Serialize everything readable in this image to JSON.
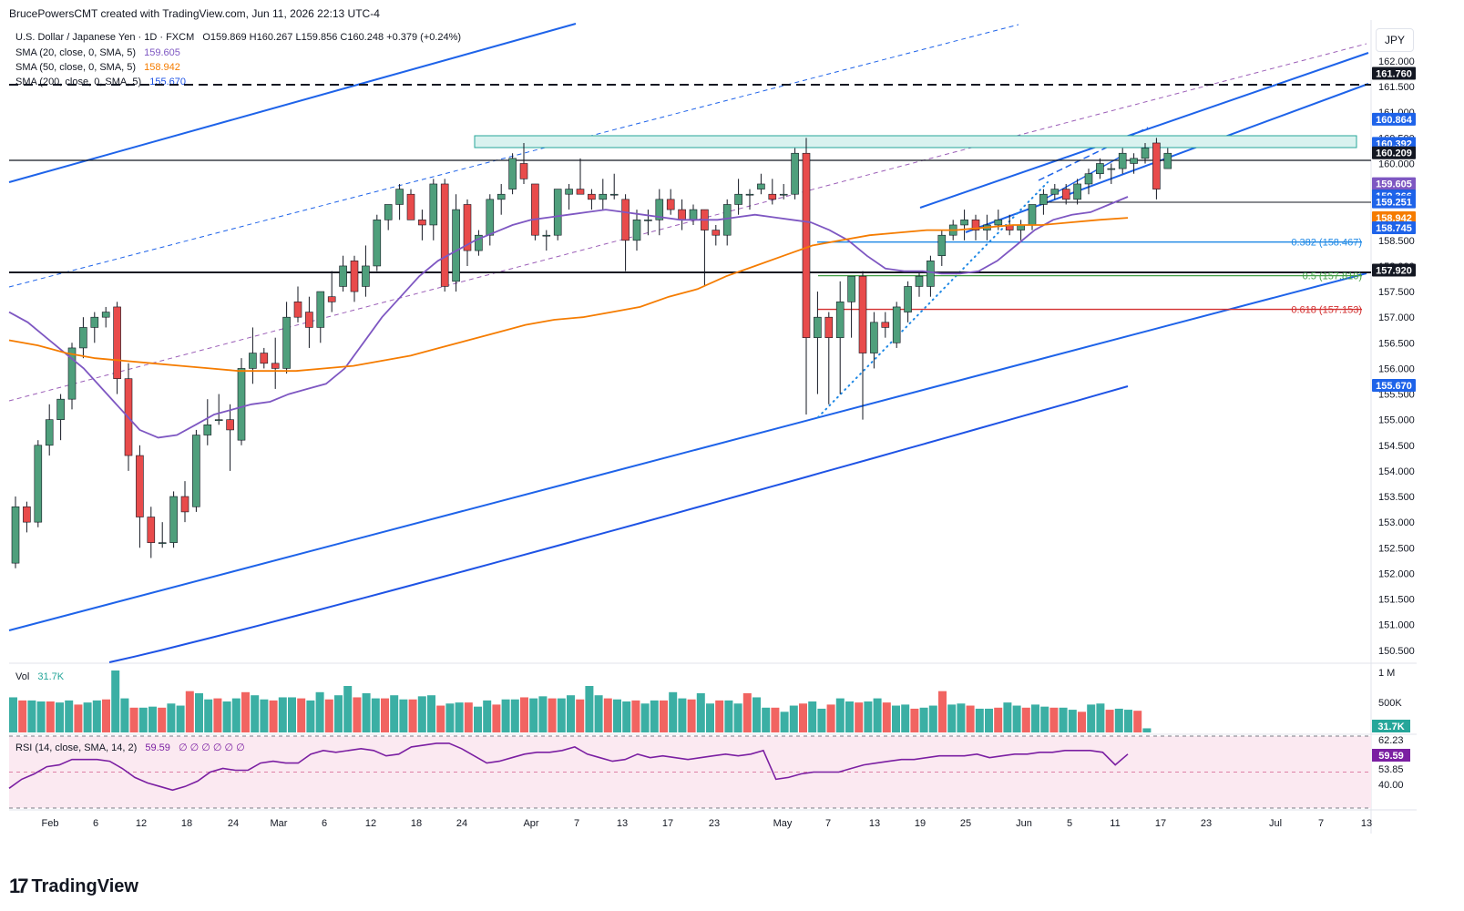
{
  "header": {
    "text": "BrucePowersCMT created with TradingView.com, Jun 11, 2026 22:13 UTC-4"
  },
  "symbol": {
    "title": "U.S. Dollar / Japanese Yen · 1D · FXCM",
    "ohlc": "O159.869 H160.267 L159.856 C160.248 +0.379 (+0.24%)",
    "currency": "JPY"
  },
  "indicators": [
    {
      "label": "SMA (20, close, 0, SMA, 5)",
      "value": "159.605",
      "color": "#7e57c2"
    },
    {
      "label": "SMA (50, close, 0, SMA, 5)",
      "value": "158.942",
      "color": "#f57c00"
    },
    {
      "label": "SMA (200, close, 0, SMA, 5)",
      "value": "155.670",
      "color": "#1e53e5"
    }
  ],
  "colors": {
    "up": "#4f9f7c",
    "down": "#e84b4b",
    "sma20": "#7e57c2",
    "sma50": "#f57c00",
    "sma200": "#1e53e5",
    "channel": "#1e63e9"
  },
  "chart_data": {
    "type": "candlestick",
    "ylim": [
      150.3,
      162.8
    ],
    "y_ticks": [
      "162.000",
      "161.500",
      "161.000",
      "160.500",
      "160.000",
      "159.500",
      "159.000",
      "158.500",
      "158.000",
      "157.500",
      "157.000",
      "156.500",
      "156.000",
      "155.500",
      "155.000",
      "154.500",
      "154.000",
      "153.500",
      "153.000",
      "152.500",
      "152.000",
      "151.500",
      "151.000",
      "150.500"
    ],
    "x_ticks": [
      "Feb",
      "6",
      "12",
      "18",
      "24",
      "Mar",
      "6",
      "12",
      "18",
      "24",
      "Apr",
      "7",
      "13",
      "17",
      "23",
      "May",
      "7",
      "13",
      "19",
      "25",
      "Jun",
      "5",
      "11",
      "17",
      "23",
      "Jul",
      "7",
      "13"
    ],
    "price_labels": [
      {
        "value": "161.760",
        "bg": "#131722"
      },
      {
        "value": "160.864",
        "bg": "#1e63e9"
      },
      {
        "value": "160.392",
        "bg": "#1e63e9"
      },
      {
        "value": "160.217",
        "bg": "#1e63e9"
      },
      {
        "value": "160.209",
        "bg": "#131722"
      },
      {
        "value": "159.605",
        "bg": "#7e57c2"
      },
      {
        "value": "159.366",
        "bg": "#131722"
      },
      {
        "value": "159.366",
        "bg": "#1e63e9"
      },
      {
        "value": "159.251",
        "bg": "#1e63e9"
      },
      {
        "value": "158.942",
        "bg": "#f57c00"
      },
      {
        "value": "158.745",
        "bg": "#1e63e9"
      },
      {
        "value": "157.920",
        "bg": "#131722"
      },
      {
        "value": "155.670",
        "bg": "#1e63e9"
      }
    ],
    "fib_levels": [
      {
        "ratio": "0.382",
        "price": "158.467",
        "label": "0.382 (158.467)",
        "color": "#1e88e5"
      },
      {
        "ratio": "0.5",
        "price": "157.810",
        "label": "0.5 (157.810)",
        "color": "#43a047"
      },
      {
        "ratio": "0.618",
        "price": "157.153",
        "label": "0.618 (157.153)",
        "color": "#d32f2f"
      }
    ],
    "candles": [
      [
        152.2,
        153.5,
        152.1,
        153.3
      ],
      [
        153.3,
        153.4,
        152.8,
        153.0
      ],
      [
        153.0,
        154.6,
        152.9,
        154.5
      ],
      [
        154.5,
        155.3,
        154.3,
        155.0
      ],
      [
        155.0,
        155.5,
        154.6,
        155.4
      ],
      [
        155.4,
        156.5,
        155.2,
        156.4
      ],
      [
        156.4,
        157.0,
        156.2,
        156.8
      ],
      [
        156.8,
        157.1,
        156.5,
        157.0
      ],
      [
        157.0,
        157.2,
        156.8,
        157.1
      ],
      [
        157.2,
        157.3,
        155.5,
        155.8
      ],
      [
        155.8,
        156.1,
        154.0,
        154.3
      ],
      [
        154.3,
        154.5,
        152.5,
        153.1
      ],
      [
        153.1,
        153.3,
        152.3,
        152.6
      ],
      [
        152.6,
        153.0,
        152.5,
        152.6
      ],
      [
        152.6,
        153.6,
        152.5,
        153.5
      ],
      [
        153.5,
        153.8,
        153.0,
        153.2
      ],
      [
        153.3,
        154.8,
        153.2,
        154.7
      ],
      [
        154.7,
        155.4,
        154.5,
        154.9
      ],
      [
        155.0,
        155.5,
        154.9,
        155.0
      ],
      [
        155.0,
        155.3,
        154.0,
        154.8
      ],
      [
        154.6,
        156.2,
        154.5,
        156.0
      ],
      [
        156.0,
        156.8,
        155.7,
        156.3
      ],
      [
        156.3,
        156.4,
        156.0,
        156.1
      ],
      [
        156.1,
        156.6,
        155.6,
        156.0
      ],
      [
        156.0,
        157.3,
        155.9,
        157.0
      ],
      [
        157.3,
        157.6,
        156.9,
        157.0
      ],
      [
        157.1,
        157.4,
        156.4,
        156.8
      ],
      [
        156.8,
        157.5,
        156.5,
        157.5
      ],
      [
        157.4,
        157.9,
        157.1,
        157.3
      ],
      [
        157.6,
        158.2,
        157.5,
        158.0
      ],
      [
        158.1,
        158.2,
        157.3,
        157.5
      ],
      [
        157.6,
        158.4,
        157.4,
        158.0
      ],
      [
        158.0,
        159.0,
        157.9,
        158.9
      ],
      [
        158.9,
        159.2,
        158.7,
        159.2
      ],
      [
        159.2,
        159.6,
        158.9,
        159.5
      ],
      [
        159.4,
        159.5,
        158.9,
        158.9
      ],
      [
        158.9,
        159.1,
        158.5,
        158.8
      ],
      [
        158.8,
        159.7,
        158.5,
        159.6
      ],
      [
        159.6,
        159.7,
        157.5,
        157.6
      ],
      [
        157.7,
        159.4,
        157.5,
        159.1
      ],
      [
        159.2,
        159.3,
        158.0,
        158.3
      ],
      [
        158.3,
        158.7,
        158.2,
        158.6
      ],
      [
        158.6,
        159.4,
        158.4,
        159.3
      ],
      [
        159.3,
        159.6,
        159.0,
        159.4
      ],
      [
        159.5,
        160.2,
        159.4,
        160.1
      ],
      [
        160.0,
        160.4,
        159.6,
        159.7
      ],
      [
        159.6,
        159.6,
        158.5,
        158.6
      ],
      [
        158.6,
        158.7,
        158.3,
        158.6
      ],
      [
        158.6,
        159.5,
        158.5,
        159.5
      ],
      [
        159.4,
        159.6,
        159.1,
        159.5
      ],
      [
        159.5,
        160.1,
        159.4,
        159.4
      ],
      [
        159.4,
        159.5,
        159.1,
        159.3
      ],
      [
        159.3,
        159.7,
        159.1,
        159.4
      ],
      [
        159.4,
        159.8,
        159.3,
        159.4
      ],
      [
        159.3,
        159.4,
        157.9,
        158.5
      ],
      [
        158.5,
        159.1,
        158.3,
        158.9
      ],
      [
        158.9,
        159.1,
        158.6,
        158.9
      ],
      [
        158.9,
        159.5,
        158.6,
        159.3
      ],
      [
        159.3,
        159.5,
        159.0,
        159.1
      ],
      [
        159.1,
        159.3,
        158.7,
        158.9
      ],
      [
        158.9,
        159.2,
        158.8,
        159.1
      ],
      [
        159.1,
        159.1,
        157.6,
        158.7
      ],
      [
        158.7,
        158.8,
        158.4,
        158.6
      ],
      [
        158.6,
        159.3,
        158.4,
        159.2
      ],
      [
        159.2,
        159.7,
        159.0,
        159.4
      ],
      [
        159.4,
        159.5,
        159.1,
        159.4
      ],
      [
        159.5,
        159.8,
        159.4,
        159.6
      ],
      [
        159.4,
        159.7,
        159.2,
        159.3
      ],
      [
        159.4,
        159.6,
        159.3,
        159.4
      ],
      [
        159.4,
        160.3,
        159.3,
        160.2
      ],
      [
        160.2,
        160.5,
        155.1,
        156.6
      ],
      [
        156.6,
        157.5,
        155.5,
        157.0
      ],
      [
        157.0,
        157.1,
        155.3,
        156.6
      ],
      [
        156.6,
        157.7,
        155.5,
        157.3
      ],
      [
        157.3,
        157.8,
        156.6,
        157.8
      ],
      [
        157.8,
        157.9,
        155.0,
        156.3
      ],
      [
        156.3,
        157.1,
        156.0,
        156.9
      ],
      [
        156.9,
        157.1,
        156.6,
        156.8
      ],
      [
        156.5,
        157.3,
        156.4,
        157.2
      ],
      [
        157.1,
        157.7,
        156.9,
        157.6
      ],
      [
        157.6,
        157.9,
        157.4,
        157.8
      ],
      [
        157.6,
        158.2,
        157.4,
        158.1
      ],
      [
        158.2,
        158.7,
        158.0,
        158.6
      ],
      [
        158.6,
        158.9,
        158.5,
        158.8
      ],
      [
        158.8,
        159.1,
        158.5,
        158.9
      ],
      [
        158.9,
        159.0,
        158.5,
        158.7
      ],
      [
        158.7,
        159.0,
        158.5,
        158.8
      ],
      [
        158.8,
        159.1,
        158.7,
        158.9
      ],
      [
        158.8,
        159.0,
        158.6,
        158.7
      ],
      [
        158.7,
        158.9,
        158.5,
        158.8
      ],
      [
        158.8,
        159.2,
        158.7,
        159.2
      ],
      [
        159.2,
        159.5,
        159.0,
        159.4
      ],
      [
        159.4,
        159.6,
        159.3,
        159.5
      ],
      [
        159.5,
        159.6,
        159.2,
        159.3
      ],
      [
        159.3,
        159.7,
        159.2,
        159.6
      ],
      [
        159.6,
        159.9,
        159.4,
        159.8
      ],
      [
        159.8,
        160.1,
        159.7,
        160.0
      ],
      [
        159.9,
        160.0,
        159.6,
        159.9
      ],
      [
        159.9,
        160.3,
        159.8,
        160.2
      ],
      [
        160.0,
        160.2,
        159.8,
        160.1
      ],
      [
        160.1,
        160.4,
        160.0,
        160.3
      ],
      [
        160.4,
        160.5,
        159.3,
        159.5
      ],
      [
        159.9,
        160.3,
        159.9,
        160.2
      ]
    ],
    "sma20": [
      157.1,
      156.9,
      156.6,
      156.3,
      156.0,
      155.6,
      155.2,
      154.8,
      154.65,
      154.7,
      154.9,
      155.1,
      155.2,
      155.3,
      155.35,
      155.5,
      155.6,
      155.7,
      156.0,
      156.5,
      157.0,
      157.4,
      157.8,
      158.1,
      158.3,
      158.5,
      158.65,
      158.8,
      158.9,
      158.95,
      159.0,
      159.05,
      159.1,
      159.05,
      159.0,
      158.95,
      158.9,
      158.9,
      158.9,
      158.95,
      159.0,
      158.95,
      158.9,
      158.85,
      158.7,
      158.5,
      158.2,
      157.95,
      157.9,
      157.9,
      157.85,
      157.85,
      157.9,
      158.1,
      158.4,
      158.7,
      158.9,
      159.0,
      159.05,
      159.2,
      159.35
    ],
    "sma50": [
      156.55,
      156.45,
      156.3,
      156.2,
      156.15,
      156.1,
      156.05,
      156.0,
      155.95,
      155.95,
      155.95,
      156.0,
      156.05,
      156.15,
      156.25,
      156.4,
      156.55,
      156.7,
      156.85,
      156.95,
      157.0,
      157.1,
      157.2,
      157.4,
      157.55,
      157.8,
      158.0,
      158.2,
      158.4,
      158.5,
      158.6,
      158.65,
      158.7,
      158.7,
      158.75,
      158.8,
      158.8,
      158.85,
      158.9,
      158.94
    ],
    "volume": [
      34,
      31,
      31,
      30,
      30,
      29,
      31,
      27,
      29,
      31,
      32,
      60,
      33,
      24,
      24,
      25,
      24,
      28,
      26,
      40,
      38,
      32,
      33,
      30,
      33,
      39,
      36,
      32,
      31,
      34,
      34,
      33,
      31,
      39,
      32,
      36,
      45,
      34,
      38,
      33,
      33,
      36,
      32,
      32,
      35,
      36,
      26,
      28,
      29,
      29,
      25,
      31,
      27,
      32,
      32,
      34,
      33,
      35,
      33,
      33,
      36,
      32,
      45,
      36,
      33,
      32,
      30,
      31,
      28,
      31,
      31,
      39,
      33,
      32,
      38,
      28,
      31,
      31,
      28,
      38,
      34,
      24,
      24,
      20,
      26,
      28,
      30,
      23,
      27,
      33,
      30,
      29,
      30,
      33,
      29,
      26,
      27,
      23,
      24,
      26,
      40,
      27,
      28,
      26,
      23,
      23,
      24,
      29,
      26,
      24,
      27,
      25,
      24,
      24,
      22,
      20,
      27,
      28,
      22,
      23,
      22,
      21,
      4
    ],
    "rsi": [
      41,
      46,
      49,
      53,
      54,
      57,
      57,
      57,
      56,
      52,
      47,
      44,
      42,
      40,
      42,
      45,
      50,
      52,
      51,
      51,
      55,
      56,
      55,
      55,
      60,
      62,
      61,
      62,
      63,
      62,
      59,
      60,
      64,
      65,
      66,
      66,
      63,
      59,
      55,
      56,
      58,
      60,
      61,
      61,
      62,
      64,
      60,
      58,
      56,
      57,
      60,
      58,
      59,
      58,
      57,
      58,
      59,
      60,
      59,
      60,
      62,
      46,
      47,
      49,
      50,
      50,
      50,
      52,
      54,
      55,
      56,
      57,
      57,
      58,
      59,
      59,
      59,
      60,
      58,
      59,
      60,
      60,
      61,
      61,
      62,
      62,
      62,
      61,
      54,
      60
    ],
    "volume_label": "Vol",
    "volume_value": "31.7K",
    "volume_ticks": [
      "1 M",
      "500K"
    ],
    "volume_last": "31.7K",
    "rsi_label": "RSI (14, close, SMA, 14, 2)",
    "rsi_value": "59.59",
    "rsi_zeros": "∅ ∅ ∅ ∅ ∅ ∅",
    "rsi_ticks": [
      "62.23",
      "59.59",
      "53.85",
      "40.00"
    ]
  },
  "footer": {
    "brand": "TradingView"
  }
}
